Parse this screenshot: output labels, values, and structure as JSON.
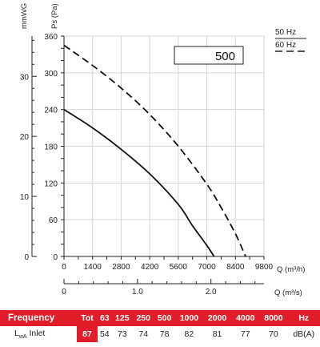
{
  "chart_data": {
    "type": "line",
    "x_label": "Q (m³/h)",
    "x_ticks": [
      0,
      1400,
      2800,
      4200,
      5600,
      7000,
      8400,
      9800
    ],
    "xlim": [
      0,
      9800
    ],
    "x2_label": "Q (m³/s)",
    "x2_ticks": [
      "0",
      "1.0",
      "2.0"
    ],
    "x2_tick_values": [
      0,
      1.0,
      2.0
    ],
    "y_label": "Ps (Pa)",
    "y_ticks": [
      0,
      60,
      120,
      180,
      240,
      300,
      360
    ],
    "ylim": [
      0,
      360
    ],
    "y2_label": "mmWG",
    "y2_ticks": [
      0,
      10,
      20,
      30
    ],
    "grid": true,
    "model_label": "500",
    "legend": {
      "placement": "top-right",
      "entries": [
        "50 Hz",
        "60 Hz"
      ]
    },
    "series": [
      {
        "name": "50 Hz",
        "style": "solid",
        "x": [
          0,
          1400,
          2800,
          4200,
          5600,
          6300,
          7000,
          7350
        ],
        "y": [
          240,
          210,
          175,
          135,
          85,
          50,
          18,
          0
        ]
      },
      {
        "name": "60 Hz",
        "style": "dashed",
        "x": [
          0,
          1400,
          2800,
          4200,
          5600,
          7000,
          7700,
          8400,
          8900
        ],
        "y": [
          345,
          312,
          275,
          232,
          180,
          118,
          80,
          37,
          0
        ]
      }
    ]
  },
  "sound_table": {
    "title": "Frequency",
    "tot_label": "Tot",
    "bands": [
      "63",
      "125",
      "250",
      "500",
      "1000",
      "2000",
      "4000",
      "8000"
    ],
    "unit": "Hz",
    "row_label": "L",
    "row_label_sub": "wA",
    "row_label_suffix": "Inlet",
    "tot_value": "87",
    "values": [
      "54",
      "73",
      "74",
      "78",
      "82",
      "81",
      "77",
      "70"
    ],
    "value_unit": "dB(A)"
  },
  "colors": {
    "accent": "#e11d2a",
    "grid": "#d6d6d6",
    "curve": "#111111"
  }
}
